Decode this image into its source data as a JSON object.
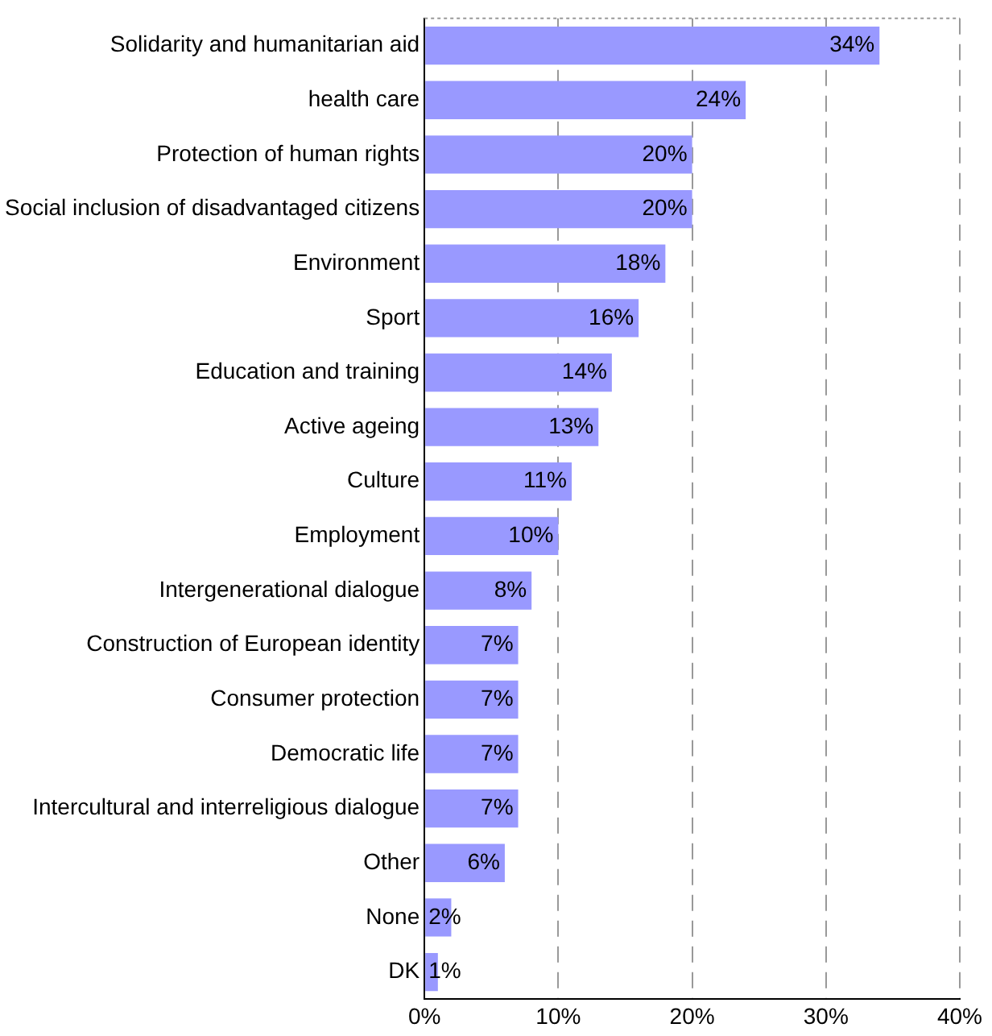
{
  "chart_data": {
    "type": "bar",
    "orientation": "horizontal",
    "categories": [
      "Solidarity and humanitarian aid",
      "health care",
      "Protection of human rights",
      "Social inclusion of disadvantaged citizens",
      "Environment",
      "Sport",
      "Education and training",
      "Active ageing",
      "Culture",
      "Employment",
      "Intergenerational dialogue",
      "Construction of European identity",
      "Consumer protection",
      "Democratic life",
      "Intercultural and interreligious dialogue",
      "Other",
      "None",
      "DK"
    ],
    "values": [
      34,
      24,
      20,
      20,
      18,
      16,
      14,
      13,
      11,
      10,
      8,
      7,
      7,
      7,
      7,
      6,
      2,
      1
    ],
    "value_labels": [
      "34%",
      "24%",
      "20%",
      "20%",
      "18%",
      "16%",
      "14%",
      "13%",
      "11%",
      "10%",
      "8%",
      "7%",
      "7%",
      "7%",
      "7%",
      "6%",
      "2%",
      "1%"
    ],
    "color": "#9999ff",
    "xlim": [
      0,
      40
    ],
    "xticks": [
      {
        "value": 0,
        "label": "0%"
      },
      {
        "value": 10,
        "label": "10%"
      },
      {
        "value": 20,
        "label": "20%"
      },
      {
        "value": 30,
        "label": "30%"
      },
      {
        "value": 40,
        "label": "40%"
      }
    ],
    "grid": "x",
    "line_style": "dashed",
    "legend": false
  }
}
